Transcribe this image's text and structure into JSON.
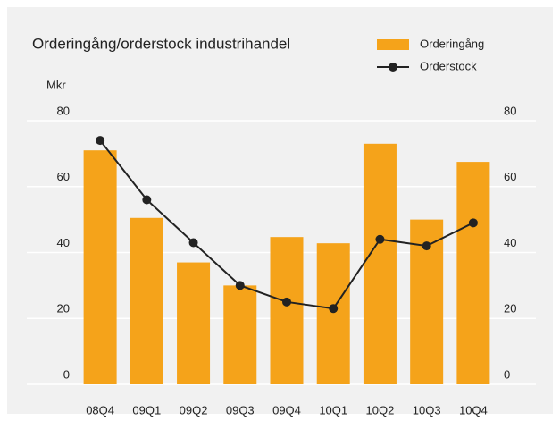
{
  "chart_data": {
    "type": "bar",
    "title": "Orderingång/orderstock industrihandel",
    "ylabel": "Mkr",
    "categories": [
      "08Q4",
      "09Q1",
      "09Q2",
      "09Q3",
      "09Q4",
      "10Q1",
      "10Q2",
      "10Q3",
      "10Q4"
    ],
    "series": [
      {
        "name": "Orderingång",
        "type": "bar",
        "color": "#f5a31a",
        "values": [
          71,
          50.5,
          37,
          30,
          44.7,
          42.8,
          73,
          50,
          67.5
        ]
      },
      {
        "name": "Orderstock",
        "type": "line",
        "color": "#222222",
        "values": [
          74,
          56,
          43,
          30,
          25,
          23,
          44,
          42,
          49
        ]
      }
    ],
    "ylim": [
      0,
      80
    ],
    "yticks": [
      0,
      20,
      40,
      60,
      80
    ],
    "y2lim": [
      0,
      80
    ],
    "y2ticks": [
      0,
      20,
      40,
      60,
      80
    ],
    "grid": true,
    "legend": "top-right"
  }
}
